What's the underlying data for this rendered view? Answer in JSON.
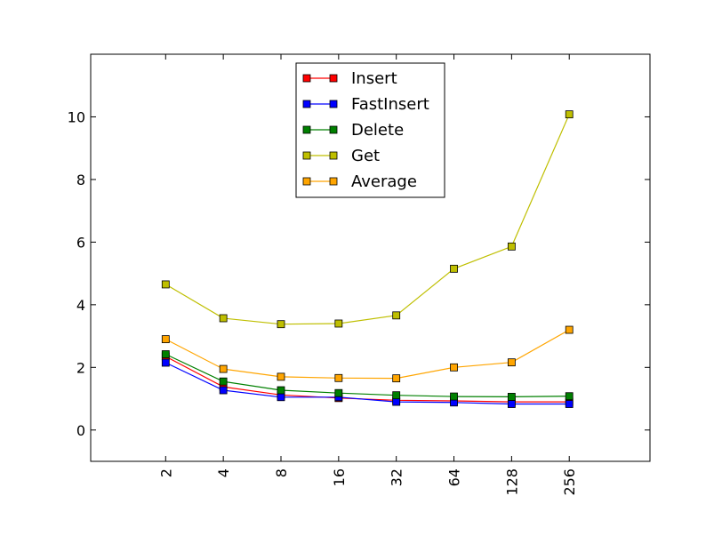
{
  "chart_data": {
    "type": "line",
    "title": "",
    "xlabel": "",
    "ylabel": "",
    "categories": [
      "2",
      "4",
      "8",
      "16",
      "32",
      "64",
      "128",
      "256"
    ],
    "x_positions": [
      2,
      3,
      4,
      5,
      6,
      7,
      8,
      9
    ],
    "xlim": [
      0.7,
      10.4
    ],
    "ylim": [
      -1,
      12
    ],
    "yticks": [
      0,
      2,
      4,
      6,
      8,
      10
    ],
    "grid": false,
    "legend_position": "top-center",
    "series": [
      {
        "name": "Insert",
        "color": "#ff0000",
        "values": [
          2.35,
          1.38,
          1.12,
          1.02,
          0.95,
          0.93,
          0.9,
          0.9
        ]
      },
      {
        "name": "FastInsert",
        "color": "#0000ff",
        "values": [
          2.15,
          1.27,
          1.05,
          1.05,
          0.9,
          0.88,
          0.83,
          0.83
        ]
      },
      {
        "name": "Delete",
        "color": "#008000",
        "values": [
          2.42,
          1.55,
          1.27,
          1.18,
          1.11,
          1.07,
          1.06,
          1.08
        ]
      },
      {
        "name": "Get",
        "color": "#bfbf00",
        "values": [
          4.65,
          3.57,
          3.38,
          3.4,
          3.66,
          5.15,
          5.86,
          10.08
        ]
      },
      {
        "name": "Average",
        "color": "#ffa500",
        "values": [
          2.9,
          1.95,
          1.7,
          1.66,
          1.65,
          2.0,
          2.16,
          3.2
        ]
      }
    ]
  }
}
